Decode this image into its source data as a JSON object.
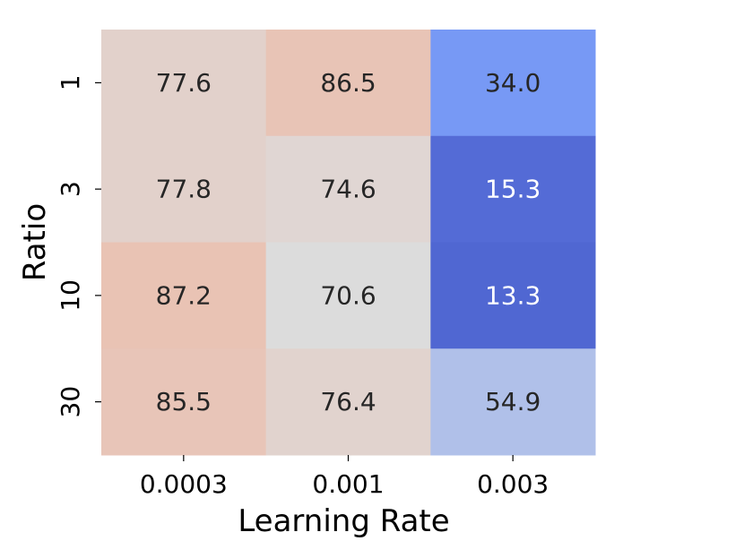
{
  "chart_data": {
    "type": "heatmap",
    "xlabel": "Learning Rate",
    "ylabel": "Ratio",
    "x_categories": [
      "0.0003",
      "0.001",
      "0.003"
    ],
    "y_categories": [
      "1",
      "3",
      "10",
      "30"
    ],
    "values": [
      [
        77.6,
        86.5,
        34.0
      ],
      [
        77.8,
        74.6,
        15.3
      ],
      [
        87.2,
        70.6,
        13.3
      ],
      [
        85.5,
        76.4,
        54.9
      ]
    ],
    "colormap": "coolwarm",
    "colorbar": false,
    "annotations": true,
    "value_format": "0.0"
  }
}
